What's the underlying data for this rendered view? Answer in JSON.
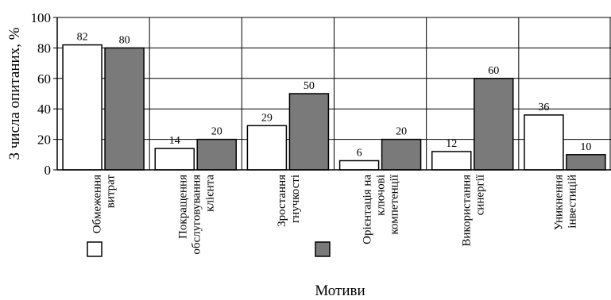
{
  "chart_data": {
    "type": "bar",
    "categories": [
      "Обмеження витрат",
      "Покращення обслуговування клієнта",
      "Зростання гнучкості",
      "Орієнтація на ключові компетенції",
      "Використання синергії",
      "Уникнення інвестицій"
    ],
    "category_lines": [
      [
        "Обмеження",
        "витрат"
      ],
      [
        "Покращення",
        "обслуговування",
        "клієнта"
      ],
      [
        "Зростання",
        "гнучкості"
      ],
      [
        "Орієнтація на",
        "ключові",
        "компетенції"
      ],
      [
        "Використання",
        "синергії"
      ],
      [
        "Уникнення",
        "інвестицій"
      ]
    ],
    "series": [
      {
        "values": [
          82,
          14,
          29,
          6,
          12,
          36
        ],
        "color": "#ffffff"
      },
      {
        "values": [
          80,
          20,
          50,
          20,
          60,
          10
        ],
        "color": "#7a7a7a"
      }
    ],
    "xlabel": "Мотиви",
    "ylabel": "З числа опитаних, %",
    "ylim": [
      0,
      100
    ],
    "yticks": [
      0,
      20,
      40,
      60,
      80,
      100
    ],
    "grid": true,
    "legend": "inline-under-categories"
  }
}
